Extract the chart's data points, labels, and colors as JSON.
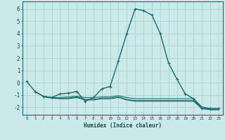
{
  "xlabel": "Humidex (Indice chaleur)",
  "bg_color": "#cce9e9",
  "line_color": "#1a6b6b",
  "grid_color": "#b0d0d0",
  "xlim": [
    -0.5,
    23.5
  ],
  "ylim": [
    -2.6,
    6.6
  ],
  "xticks": [
    0,
    1,
    2,
    3,
    4,
    5,
    6,
    7,
    8,
    9,
    10,
    11,
    12,
    13,
    14,
    15,
    16,
    17,
    18,
    19,
    20,
    21,
    22,
    23
  ],
  "yticks": [
    -2,
    -1,
    0,
    1,
    2,
    3,
    4,
    5,
    6
  ],
  "series": [
    {
      "x": [
        0,
        1,
        2,
        3,
        4,
        5,
        6,
        7,
        8,
        9,
        10,
        11,
        12,
        13,
        14,
        15,
        16,
        17,
        18,
        19,
        20,
        21,
        22,
        23
      ],
      "y": [
        0.1,
        -0.7,
        -1.1,
        -1.2,
        -0.9,
        -0.85,
        -0.7,
        -1.5,
        -1.2,
        -0.5,
        -0.3,
        1.8,
        4.0,
        6.0,
        5.85,
        5.5,
        4.0,
        1.6,
        0.3,
        -0.9,
        -1.3,
        -2.1,
        -2.1,
        -2.1
      ],
      "has_markers": true
    },
    {
      "x": [
        1,
        2,
        3,
        4,
        5,
        6,
        7,
        8,
        9,
        10,
        11,
        12,
        13,
        14,
        15,
        16,
        17,
        18,
        19,
        20,
        21,
        22,
        23
      ],
      "y": [
        -0.75,
        -1.1,
        -1.2,
        -1.2,
        -1.15,
        -1.1,
        -1.2,
        -1.2,
        -1.15,
        -1.15,
        -1.05,
        -1.2,
        -1.3,
        -1.3,
        -1.3,
        -1.3,
        -1.3,
        -1.3,
        -1.3,
        -1.3,
        -1.95,
        -2.1,
        -2.1
      ],
      "has_markers": false
    },
    {
      "x": [
        2,
        3,
        4,
        5,
        6,
        7,
        8,
        9,
        10,
        11,
        12,
        13,
        14,
        15,
        16,
        17,
        18,
        19,
        20,
        21,
        22,
        23
      ],
      "y": [
        -1.1,
        -1.2,
        -1.25,
        -1.25,
        -1.15,
        -1.35,
        -1.35,
        -1.25,
        -1.25,
        -1.15,
        -1.35,
        -1.45,
        -1.45,
        -1.45,
        -1.45,
        -1.45,
        -1.45,
        -1.45,
        -1.45,
        -2.05,
        -2.15,
        -2.15
      ],
      "has_markers": false
    },
    {
      "x": [
        2,
        3,
        4,
        5,
        6,
        7,
        8,
        9,
        10,
        11,
        12,
        13,
        14,
        15,
        16,
        17,
        18,
        19,
        20,
        21,
        22,
        23
      ],
      "y": [
        -1.15,
        -1.25,
        -1.3,
        -1.3,
        -1.2,
        -1.4,
        -1.4,
        -1.3,
        -1.3,
        -1.2,
        -1.4,
        -1.5,
        -1.5,
        -1.5,
        -1.5,
        -1.5,
        -1.5,
        -1.5,
        -1.5,
        -2.1,
        -2.2,
        -2.2
      ],
      "has_markers": false
    }
  ]
}
